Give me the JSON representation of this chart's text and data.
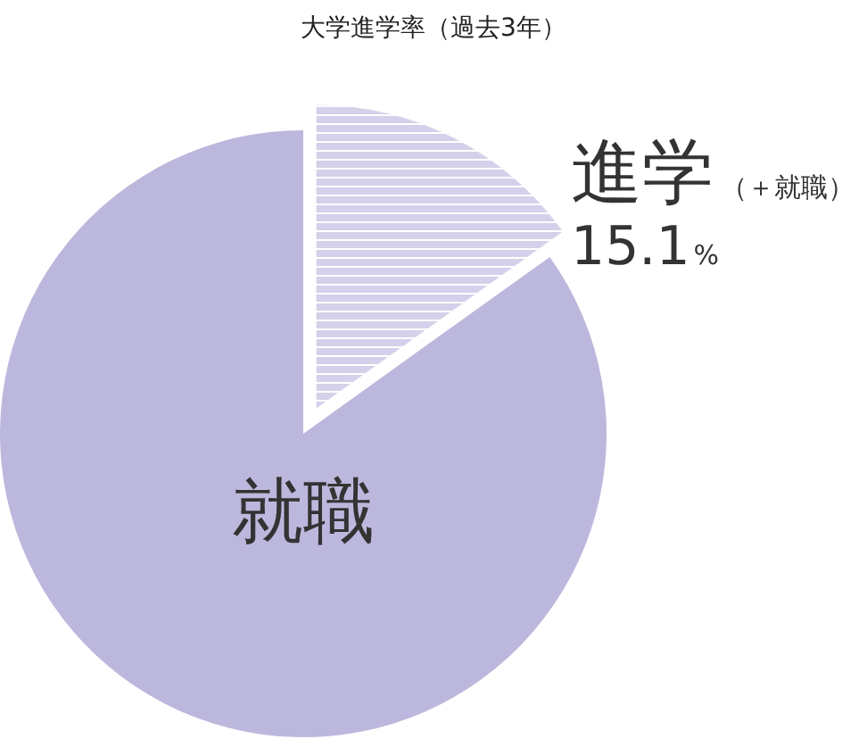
{
  "chart_data": {
    "type": "pie",
    "title": "大学進学率（過去3年）",
    "categories": [
      "進学（＋就職）",
      "就職"
    ],
    "values": [
      15.1,
      84.9
    ],
    "colors": [
      "#d4d1ea",
      "#bcb8dd"
    ],
    "value_labels": [
      "15.1%",
      null
    ]
  }
}
